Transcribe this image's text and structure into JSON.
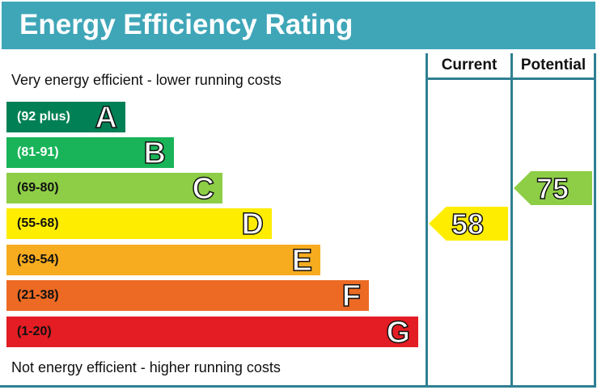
{
  "title": "Energy Efficiency Rating",
  "columns": {
    "current": "Current",
    "potential": "Potential"
  },
  "top_note": "Very energy efficient - lower running costs",
  "bottom_note": "Not energy efficient - higher running costs",
  "chart_data": {
    "type": "bar",
    "title": "Energy Efficiency Rating",
    "bands": [
      {
        "range": "(92 plus)",
        "letter": "A",
        "color": "#008054"
      },
      {
        "range": "(81-91)",
        "letter": "B",
        "color": "#19b459"
      },
      {
        "range": "(69-80)",
        "letter": "C",
        "color": "#8dce46"
      },
      {
        "range": "(55-68)",
        "letter": "D",
        "color": "#ffed00"
      },
      {
        "range": "(39-54)",
        "letter": "E",
        "color": "#f7ac1f"
      },
      {
        "range": "(21-38)",
        "letter": "F",
        "color": "#ec6a24"
      },
      {
        "range": "(1-20)",
        "letter": "G",
        "color": "#e31d23"
      }
    ],
    "current": {
      "value": "58",
      "band": "D",
      "color": "#ffed00"
    },
    "potential": {
      "value": "75",
      "band": "C",
      "color": "#8dce46"
    }
  }
}
